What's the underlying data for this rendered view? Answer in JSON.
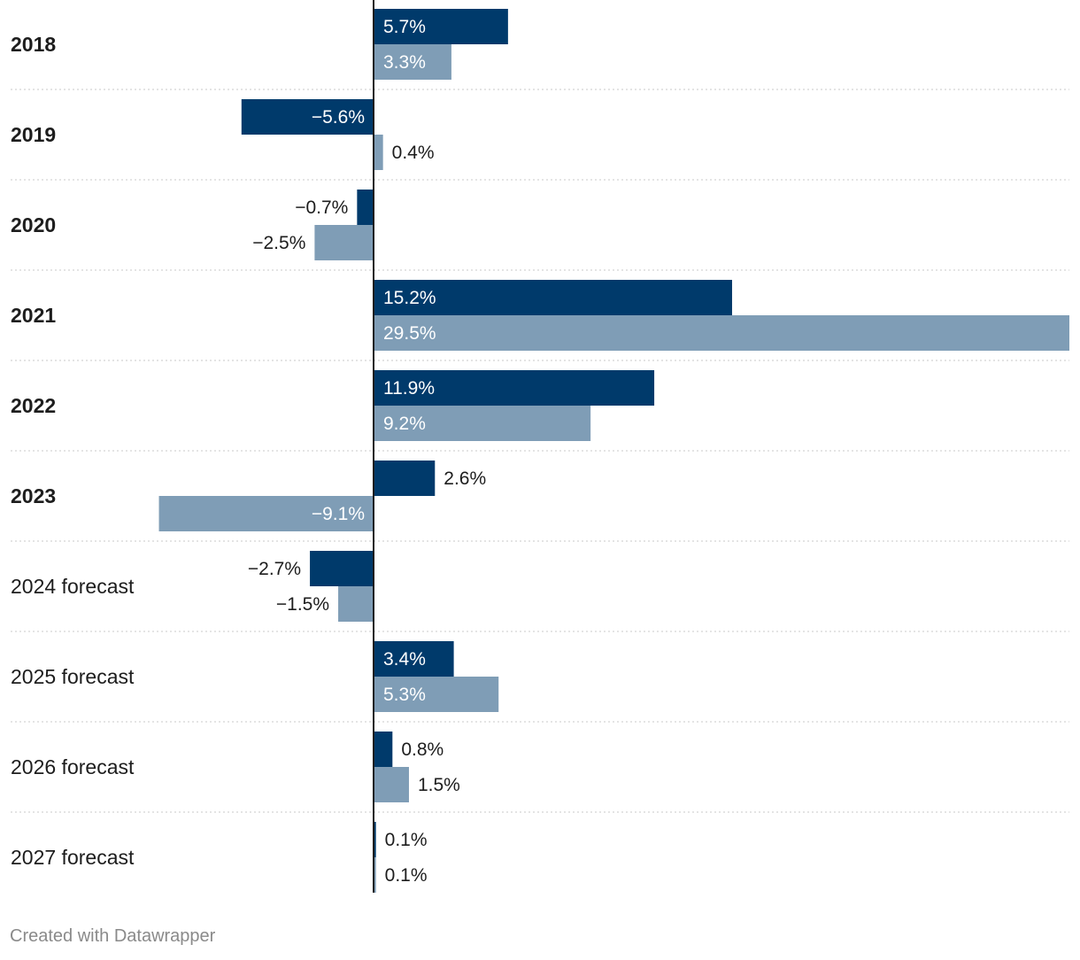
{
  "chart_data": {
    "type": "bar",
    "orientation": "horizontal",
    "categories": [
      "2018",
      "2019",
      "2020",
      "2021",
      "2022",
      "2023",
      "2024 forecast",
      "2025 forecast",
      "2026 forecast",
      "2027 forecast"
    ],
    "bold_categories": [
      "2018",
      "2019",
      "2020",
      "2021",
      "2022",
      "2023"
    ],
    "series": [
      {
        "name": "Series 1",
        "color": "#003a6b",
        "values": [
          5.7,
          -5.6,
          -0.7,
          15.2,
          11.9,
          2.6,
          -2.7,
          3.4,
          0.8,
          0.1
        ],
        "labels": [
          "5.7%",
          "−5.6%",
          "−0.7%",
          "15.2%",
          "11.9%",
          "2.6%",
          "−2.7%",
          "3.4%",
          "0.8%",
          "0.1%"
        ]
      },
      {
        "name": "Series 2",
        "color": "#7f9db6",
        "values": [
          3.3,
          0.4,
          -2.5,
          29.5,
          9.2,
          -9.1,
          -1.5,
          5.3,
          1.5,
          0.1
        ],
        "labels": [
          "3.3%",
          "0.4%",
          "−2.5%",
          "29.5%",
          "9.2%",
          "−9.1%",
          "−1.5%",
          "5.3%",
          "1.5%",
          "0.1%"
        ]
      }
    ],
    "xlim": [
      -15.4,
      29.5
    ],
    "grid": false,
    "legend": "none"
  },
  "footer": {
    "credit": "Created with Datawrapper"
  }
}
